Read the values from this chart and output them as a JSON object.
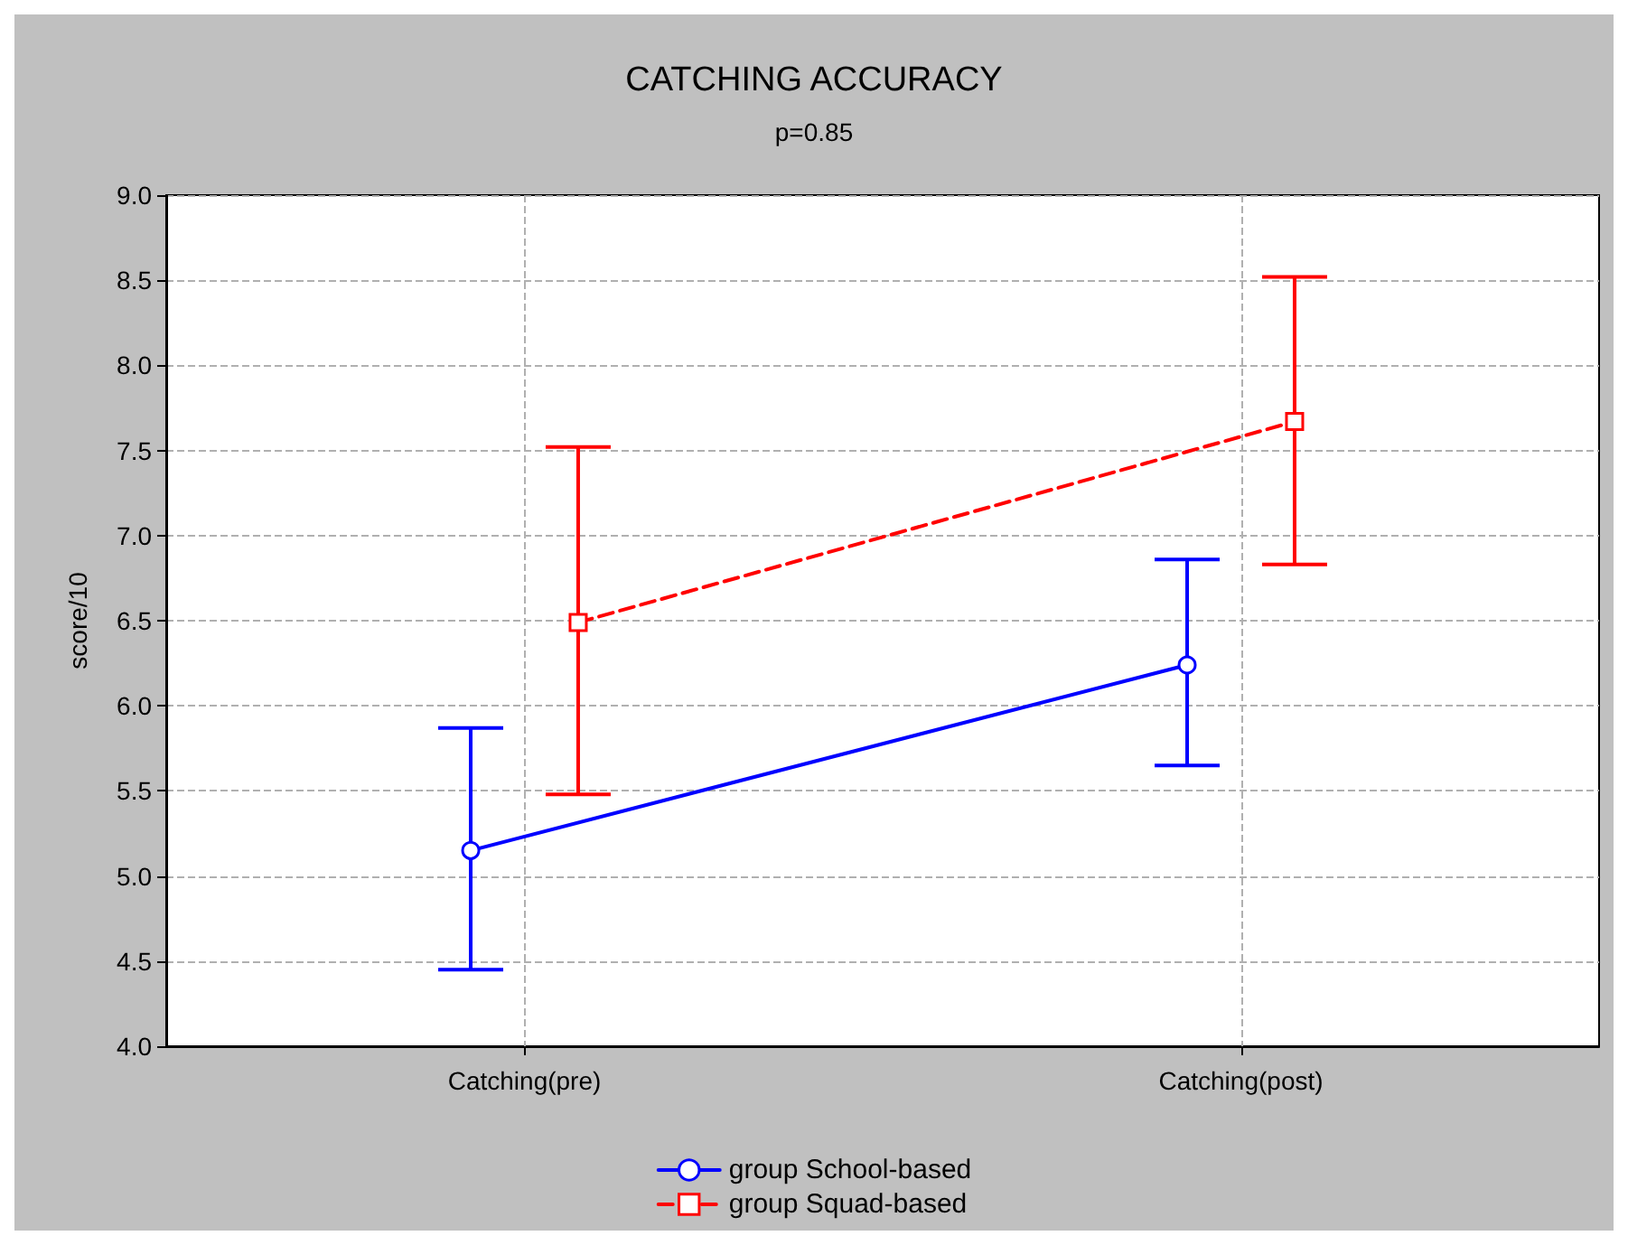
{
  "chart_data": {
    "type": "line",
    "title": "CATCHING ACCURACY",
    "subtitle": "p=0.85",
    "ylabel": "score/10",
    "categories": [
      "Catching(pre)",
      "Catching(post)"
    ],
    "series": [
      {
        "name": "group School-based",
        "color": "#0000ff",
        "values": [
          5.15,
          6.24
        ],
        "errors": [
          [
            4.45,
            5.87
          ],
          [
            5.65,
            6.86
          ]
        ],
        "marker": "circle",
        "line_style": "solid"
      },
      {
        "name": "group Squad-based",
        "color": "#ff0000",
        "values": [
          6.49,
          7.67
        ],
        "errors": [
          [
            5.48,
            7.52
          ],
          [
            6.83,
            8.52
          ]
        ],
        "marker": "square",
        "line_style": "dashed"
      }
    ],
    "ylim": [
      4,
      9
    ],
    "yticks": [
      {
        "value": 4,
        "label": "4.0"
      },
      {
        "value": 4.5,
        "label": "4.5"
      },
      {
        "value": 5,
        "label": "5.0"
      },
      {
        "value": 5.5,
        "label": "5.5"
      },
      {
        "value": 6,
        "label": "6.0"
      },
      {
        "value": 6.5,
        "label": "6.5"
      },
      {
        "value": 7,
        "label": "7.0"
      },
      {
        "value": 7.5,
        "label": "7.5"
      },
      {
        "value": 8,
        "label": "8.0"
      },
      {
        "value": 8.5,
        "label": "8.5"
      },
      {
        "value": 9,
        "label": "9.0"
      }
    ],
    "grid": true,
    "legend": "bottom"
  }
}
